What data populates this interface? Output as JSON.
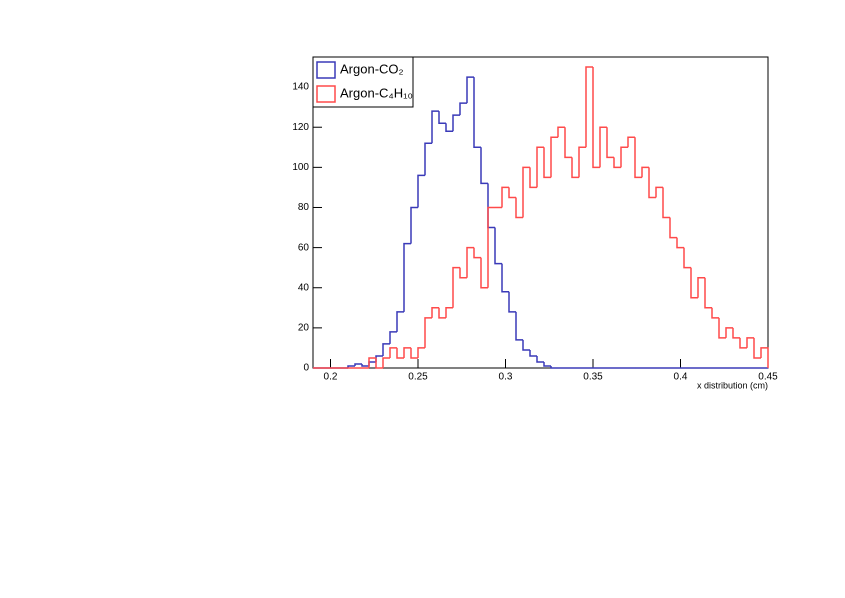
{
  "chart_data": {
    "type": "histogram",
    "xlabel": "x distribution (cm)",
    "bins": [
      0.19,
      0.194,
      0.198,
      0.202,
      0.206,
      0.21,
      0.214,
      0.218,
      0.222,
      0.226,
      0.23,
      0.234,
      0.238,
      0.242,
      0.246,
      0.25,
      0.254,
      0.258,
      0.262,
      0.266,
      0.27,
      0.274,
      0.278,
      0.282,
      0.286,
      0.29,
      0.294,
      0.298,
      0.302,
      0.306,
      0.31,
      0.314,
      0.318,
      0.322,
      0.326,
      0.33,
      0.334,
      0.338,
      0.342,
      0.346,
      0.35,
      0.354,
      0.358,
      0.362,
      0.366,
      0.37,
      0.374,
      0.378,
      0.382,
      0.386,
      0.39,
      0.394,
      0.398,
      0.402,
      0.406,
      0.41,
      0.414,
      0.418,
      0.422,
      0.426,
      0.43,
      0.434,
      0.438,
      0.442,
      0.446,
      0.45
    ],
    "series": [
      {
        "name": "Argon-CO₂",
        "color": "#3a3ab8",
        "values": [
          0,
          0,
          0,
          0,
          0,
          1,
          2,
          1,
          3,
          6,
          12,
          18,
          28,
          62,
          80,
          96,
          112,
          128,
          122,
          118,
          126,
          132,
          145,
          110,
          92,
          70,
          52,
          38,
          28,
          14,
          9,
          6,
          3,
          1,
          0,
          0,
          0,
          0,
          0,
          0,
          0,
          0,
          0,
          0,
          0,
          0,
          0,
          0,
          0,
          0,
          0,
          0,
          0,
          0,
          0,
          0,
          0,
          0,
          0,
          0,
          0,
          0,
          0,
          0,
          0
        ]
      },
      {
        "name": "Argon-C₄H₁₀",
        "color": "#ff4a4a",
        "values": [
          0,
          0,
          0,
          0,
          0,
          0,
          0,
          0,
          5,
          0,
          5,
          10,
          5,
          10,
          5,
          10,
          25,
          30,
          25,
          30,
          50,
          45,
          60,
          55,
          40,
          80,
          80,
          90,
          85,
          75,
          100,
          90,
          110,
          95,
          115,
          120,
          105,
          95,
          110,
          150,
          100,
          120,
          105,
          100,
          110,
          115,
          95,
          100,
          85,
          90,
          75,
          65,
          60,
          50,
          35,
          45,
          30,
          25,
          15,
          20,
          15,
          10,
          15,
          5,
          10
        ]
      }
    ],
    "xlim": [
      0.19,
      0.45
    ],
    "ylim": [
      0,
      155
    ],
    "xticks": [
      0.2,
      0.25,
      0.3,
      0.35,
      0.4,
      0.45
    ],
    "yticks": [
      0,
      20,
      40,
      60,
      80,
      100,
      120,
      140
    ],
    "legend": "top-left"
  }
}
